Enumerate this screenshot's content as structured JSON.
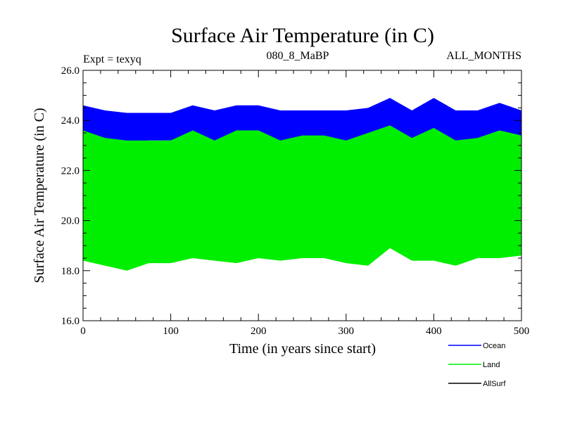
{
  "chart_data": {
    "type": "line",
    "title": "Surface Air Temperature (in C)",
    "expt_label": "Expt = texyq",
    "subtitle_center": "080_8_MaBP",
    "subtitle_right": "ALL_MONTHS",
    "xlabel": "Time (in years since start)",
    "ylabel": "Surface Air Temperature (in C)",
    "xlim": [
      0,
      500
    ],
    "ylim": [
      16.0,
      26.0
    ],
    "x_ticks": [
      0,
      100,
      200,
      300,
      400,
      500
    ],
    "x_tick_labels": [
      "0",
      "100",
      "200",
      "300",
      "400",
      "500"
    ],
    "y_ticks": [
      16,
      18,
      20,
      22,
      24,
      26
    ],
    "y_tick_labels": [
      "16.0",
      "18.0",
      "20.0",
      "22.0",
      "24.0",
      "26.0"
    ],
    "grid": false,
    "legend_position": "bottom-right, below plot",
    "series": [
      {
        "name": "Ocean",
        "color": "#0000ff",
        "x": [
          0,
          25,
          50,
          75,
          100,
          125,
          150,
          175,
          200,
          225,
          250,
          275,
          300,
          325,
          350,
          375,
          400,
          425,
          450,
          475,
          500
        ],
        "upper": [
          24.6,
          24.4,
          24.3,
          24.3,
          24.3,
          24.6,
          24.4,
          24.6,
          24.6,
          24.4,
          24.4,
          24.4,
          24.4,
          24.5,
          24.9,
          24.4,
          24.9,
          24.4,
          24.4,
          24.7,
          24.4
        ],
        "lower": [
          23.2,
          23.2,
          23.1,
          23.2,
          23.2,
          23.3,
          23.1,
          23.1,
          23.2,
          23.1,
          23.1,
          23.1,
          23.1,
          23.3,
          23.2,
          23.2,
          23.3,
          23.2,
          23.2,
          23.3,
          23.1
        ]
      },
      {
        "name": "Land",
        "color": "#00ee00",
        "x": [
          0,
          25,
          50,
          75,
          100,
          125,
          150,
          175,
          200,
          225,
          250,
          275,
          300,
          325,
          350,
          375,
          400,
          425,
          450,
          475,
          500
        ],
        "upper": [
          23.6,
          23.3,
          23.2,
          23.2,
          23.2,
          23.6,
          23.2,
          23.6,
          23.6,
          23.2,
          23.4,
          23.4,
          23.2,
          23.5,
          23.8,
          23.3,
          23.7,
          23.2,
          23.3,
          23.6,
          23.4
        ],
        "lower": [
          18.4,
          18.2,
          18.0,
          18.3,
          18.3,
          18.5,
          18.4,
          18.3,
          18.5,
          18.4,
          18.5,
          18.5,
          18.3,
          18.2,
          18.9,
          18.4,
          18.4,
          18.2,
          18.5,
          18.5,
          18.6
        ]
      },
      {
        "name": "AllSurf",
        "color": "#000000",
        "x": [],
        "upper": [],
        "lower": []
      }
    ]
  }
}
